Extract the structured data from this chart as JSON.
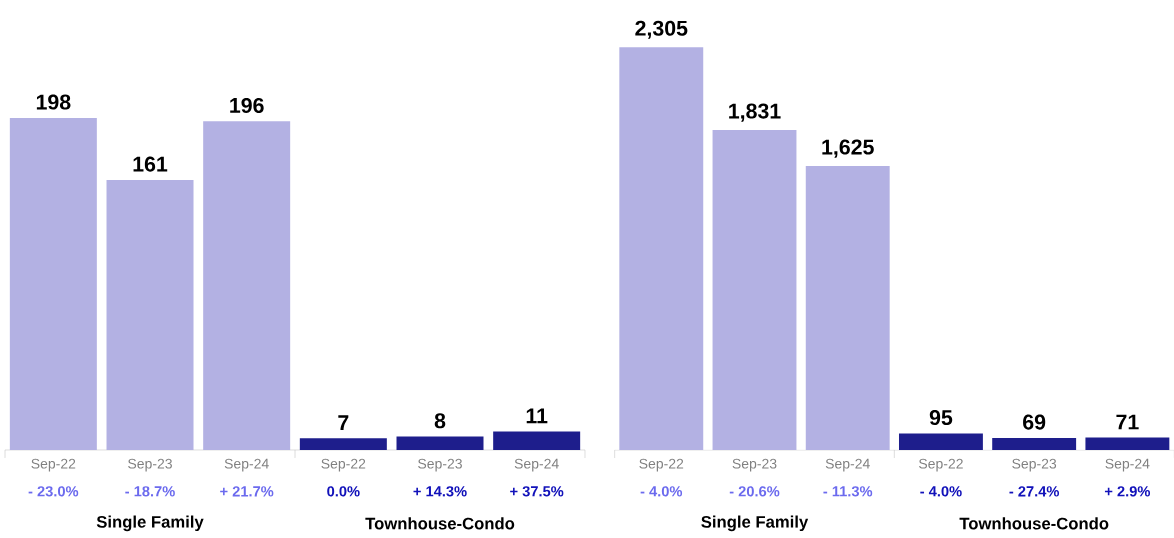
{
  "chart_data": [
    {
      "type": "bar",
      "categories": [
        "Sep-22",
        "Sep-23",
        "Sep-24",
        "Sep-22",
        "Sep-23",
        "Sep-24"
      ],
      "values": [
        198,
        161,
        196,
        7,
        8,
        11
      ],
      "colors": [
        "#b3b1e3",
        "#b3b1e3",
        "#b3b1e3",
        "#1e1e8c",
        "#1e1e8c",
        "#1e1e8c"
      ],
      "value_labels": [
        "198",
        "161",
        "196",
        "7",
        "8",
        "11"
      ],
      "annotations": [
        "- 23.0%",
        "- 18.7%",
        "+ 21.7%",
        "0.0%",
        "+ 14.3%",
        "+ 37.5%",
        "Single Family",
        "Townhouse-Condo"
      ]
    },
    {
      "type": "bar",
      "categories": [
        "Sep-22",
        "Sep-23",
        "Sep-24",
        "Sep-22",
        "Sep-23",
        "Sep-24"
      ],
      "values": [
        2305,
        1831,
        1625,
        95,
        69,
        71
      ],
      "colors": [
        "#b3b1e3",
        "#b3b1e3",
        "#b3b1e3",
        "#1e1e8c",
        "#1e1e8c",
        "#1e1e8c"
      ],
      "value_labels": [
        "2,305",
        "1,831",
        "1,625",
        "95",
        "69",
        "71"
      ],
      "annotations": [
        "- 4.0%",
        "- 20.6%",
        "- 11.3%",
        "- 4.0%",
        "- 27.4%",
        "+ 2.9%",
        "Single Family",
        "Townhouse-Condo"
      ]
    }
  ]
}
